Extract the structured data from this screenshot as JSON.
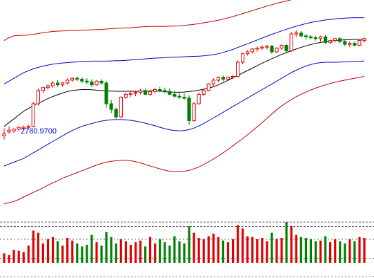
{
  "chart_data": {
    "type": "line",
    "title": "",
    "colors": {
      "up": "#e00000",
      "down": "#008000",
      "mid_band": "#000000",
      "inner_band": "#0000c0",
      "outer_band": "#c00000",
      "price_label": "#0000cc",
      "volume_ref": "#000000"
    },
    "price_label": "2780.9700",
    "price_range": [
      2400,
      3500
    ],
    "volume_range": [
      0,
      100
    ],
    "n_bars": 75,
    "mid_band": [
      2830,
      2850,
      2870,
      2890,
      2910,
      2925,
      2940,
      2953,
      2965,
      2977,
      2988,
      2998,
      3007,
      3015,
      3020,
      3023,
      3025,
      3025,
      3024,
      3022,
      3020,
      3018,
      3017,
      3016,
      3016,
      3016,
      3016,
      3016,
      3016,
      3017,
      3018,
      3018,
      3017,
      3014,
      3012,
      3011,
      3011,
      3012,
      3015,
      3018,
      3022,
      3027,
      3033,
      3040,
      3050,
      3062,
      3074,
      3087,
      3100,
      3113,
      3126,
      3139,
      3152,
      3165,
      3177,
      3189,
      3200,
      3211,
      3221,
      3231,
      3240,
      3249,
      3257,
      3264,
      3270,
      3275,
      3279,
      3282,
      3285,
      3287,
      3289,
      3290,
      3291,
      3292,
      3292
    ],
    "inner_upper": [
      3055,
      3070,
      3085,
      3100,
      3115,
      3125,
      3135,
      3143,
      3150,
      3155,
      3160,
      3163,
      3166,
      3168,
      3170,
      3172,
      3174,
      3175,
      3176,
      3176,
      3176,
      3176,
      3177,
      3178,
      3178,
      3180,
      3182,
      3184,
      3186,
      3188,
      3190,
      3192,
      3193,
      3194,
      3196,
      3197,
      3198,
      3199,
      3200,
      3201,
      3202,
      3204,
      3207,
      3210,
      3215,
      3222,
      3230,
      3238,
      3248,
      3258,
      3268,
      3278,
      3288,
      3298,
      3308,
      3318,
      3327,
      3336,
      3345,
      3353,
      3361,
      3368,
      3375,
      3381,
      3386,
      3390,
      3394,
      3397,
      3400,
      3402,
      3404,
      3405,
      3406,
      3406,
      3406
    ],
    "inner_lower": [
      2620,
      2630,
      2640,
      2650,
      2660,
      2675,
      2690,
      2705,
      2720,
      2735,
      2750,
      2765,
      2780,
      2795,
      2808,
      2820,
      2830,
      2838,
      2845,
      2852,
      2858,
      2862,
      2865,
      2866,
      2866,
      2865,
      2862,
      2858,
      2853,
      2847,
      2840,
      2833,
      2825,
      2818,
      2812,
      2808,
      2806,
      2808,
      2813,
      2821,
      2832,
      2845,
      2860,
      2875,
      2890,
      2905,
      2920,
      2935,
      2950,
      2965,
      2980,
      2995,
      3010,
      3025,
      3040,
      3055,
      3070,
      3085,
      3100,
      3115,
      3128,
      3140,
      3150,
      3158,
      3164,
      3168,
      3170,
      3170,
      3170,
      3171,
      3172,
      3173,
      3174,
      3175,
      3177
    ],
    "outer_upper": [
      3285,
      3300,
      3310,
      3312,
      3313,
      3315,
      3318,
      3322,
      3327,
      3330,
      3333,
      3335,
      3336,
      3337,
      3338,
      3339,
      3340,
      3341,
      3342,
      3343,
      3344,
      3346,
      3348,
      3350,
      3351,
      3352,
      3353,
      3355,
      3357,
      3359,
      3360,
      3360,
      3360,
      3360,
      3361,
      3362,
      3363,
      3365,
      3368,
      3371,
      3375,
      3379,
      3383,
      3388,
      3393,
      3398,
      3405,
      3412,
      3420,
      3428,
      3436,
      3444,
      3452,
      3460,
      3468,
      3475,
      3482,
      3489,
      3495,
      3501,
      3507,
      3513,
      3518,
      3522,
      3525,
      3527,
      3528,
      3528,
      3527,
      3526,
      3525,
      3525,
      3524,
      3524,
      3524
    ],
    "outer_lower": [
      2420,
      2425,
      2432,
      2442,
      2455,
      2468,
      2480,
      2492,
      2505,
      2518,
      2530,
      2542,
      2555,
      2565,
      2575,
      2585,
      2595,
      2605,
      2615,
      2625,
      2633,
      2640,
      2645,
      2648,
      2650,
      2650,
      2648,
      2643,
      2636,
      2628,
      2620,
      2612,
      2605,
      2598,
      2592,
      2590,
      2590,
      2592,
      2597,
      2605,
      2615,
      2628,
      2642,
      2657,
      2673,
      2690,
      2708,
      2727,
      2746,
      2765,
      2785,
      2806,
      2828,
      2850,
      2873,
      2896,
      2918,
      2938,
      2956,
      2972,
      2987,
      3000,
      3012,
      3023,
      3033,
      3042,
      3050,
      3057,
      3064,
      3070,
      3075,
      3080,
      3085,
      3090,
      3095
    ],
    "candles_ohlc": [
      [
        2780,
        2820,
        2760,
        2790
      ],
      [
        2800,
        2830,
        2790,
        2810
      ],
      [
        2805,
        2820,
        2795,
        2815
      ],
      [
        2815,
        2830,
        2805,
        2825
      ],
      [
        2820,
        2835,
        2810,
        2825
      ],
      [
        2825,
        2840,
        2815,
        2830
      ],
      [
        2830,
        2960,
        2825,
        2950
      ],
      [
        2950,
        3030,
        2940,
        3020
      ],
      [
        3020,
        3040,
        3005,
        3035
      ],
      [
        3035,
        3055,
        3025,
        3045
      ],
      [
        3045,
        3070,
        3035,
        3060
      ],
      [
        3060,
        3075,
        3040,
        3050
      ],
      [
        3050,
        3065,
        3040,
        3060
      ],
      [
        3060,
        3085,
        3050,
        3075
      ],
      [
        3075,
        3090,
        3065,
        3085
      ],
      [
        3085,
        3095,
        3070,
        3080
      ],
      [
        3080,
        3090,
        3060,
        3070
      ],
      [
        3070,
        3085,
        3055,
        3065
      ],
      [
        3065,
        3080,
        3040,
        3050
      ],
      [
        3050,
        3075,
        3045,
        3070
      ],
      [
        3070,
        3080,
        3050,
        3060
      ],
      [
        3060,
        3070,
        2930,
        2950
      ],
      [
        2950,
        2970,
        2900,
        2920
      ],
      [
        2920,
        2930,
        2870,
        2880
      ],
      [
        2880,
        2990,
        2875,
        2985
      ],
      [
        2985,
        3010,
        2975,
        3000
      ],
      [
        3000,
        3020,
        2985,
        3005
      ],
      [
        3005,
        3020,
        2990,
        3010
      ],
      [
        3010,
        3030,
        3000,
        3020
      ],
      [
        3020,
        3030,
        2995,
        3000
      ],
      [
        3000,
        3025,
        2990,
        3015
      ],
      [
        3015,
        3035,
        3005,
        3025
      ],
      [
        3025,
        3040,
        3010,
        3020
      ],
      [
        3020,
        3035,
        3005,
        3015
      ],
      [
        3015,
        3030,
        2995,
        3000
      ],
      [
        3000,
        3020,
        2980,
        2990
      ],
      [
        2990,
        3010,
        2975,
        2985
      ],
      [
        2985,
        3005,
        2970,
        2980
      ],
      [
        2980,
        2995,
        2840,
        2860
      ],
      [
        2860,
        2960,
        2855,
        2950
      ],
      [
        2950,
        3010,
        2945,
        3000
      ],
      [
        3000,
        3030,
        2990,
        3020
      ],
      [
        3020,
        3060,
        3015,
        3055
      ],
      [
        3055,
        3085,
        3045,
        3075
      ],
      [
        3075,
        3095,
        3065,
        3090
      ],
      [
        3090,
        3100,
        3070,
        3080
      ],
      [
        3080,
        3095,
        3070,
        3090
      ],
      [
        3090,
        3105,
        3080,
        3095
      ],
      [
        3095,
        3180,
        3090,
        3170
      ],
      [
        3170,
        3220,
        3160,
        3215
      ],
      [
        3215,
        3235,
        3205,
        3225
      ],
      [
        3225,
        3245,
        3215,
        3240
      ],
      [
        3240,
        3255,
        3225,
        3245
      ],
      [
        3245,
        3260,
        3235,
        3250
      ],
      [
        3250,
        3262,
        3238,
        3255
      ],
      [
        3255,
        3262,
        3215,
        3225
      ],
      [
        3225,
        3250,
        3220,
        3245
      ],
      [
        3245,
        3265,
        3235,
        3260
      ],
      [
        3260,
        3265,
        3220,
        3230
      ],
      [
        3230,
        3330,
        3225,
        3320
      ],
      [
        3320,
        3340,
        3305,
        3325
      ],
      [
        3325,
        3335,
        3300,
        3310
      ],
      [
        3310,
        3320,
        3290,
        3305
      ],
      [
        3305,
        3315,
        3290,
        3300
      ],
      [
        3300,
        3310,
        3285,
        3295
      ],
      [
        3295,
        3310,
        3280,
        3305
      ],
      [
        3305,
        3315,
        3265,
        3275
      ],
      [
        3275,
        3290,
        3265,
        3285
      ],
      [
        3285,
        3300,
        3275,
        3295
      ],
      [
        3295,
        3305,
        3270,
        3280
      ],
      [
        3280,
        3290,
        3255,
        3265
      ],
      [
        3265,
        3280,
        3250,
        3270
      ],
      [
        3270,
        3280,
        3255,
        3260
      ],
      [
        3260,
        3290,
        3255,
        3285
      ],
      [
        3285,
        3300,
        3275,
        3295
      ]
    ],
    "volume": [
      22,
      18,
      30,
      28,
      25,
      40,
      75,
      70,
      45,
      55,
      60,
      50,
      40,
      58,
      52,
      45,
      38,
      42,
      65,
      48,
      40,
      72,
      60,
      45,
      55,
      50,
      42,
      48,
      52,
      38,
      60,
      45,
      55,
      48,
      40,
      62,
      50,
      45,
      85,
      70,
      58,
      55,
      62,
      68,
      60,
      52,
      48,
      55,
      88,
      80,
      62,
      60,
      55,
      58,
      50,
      70,
      56,
      58,
      95,
      85,
      65,
      60,
      58,
      55,
      50,
      52,
      62,
      48,
      55,
      50,
      45,
      55,
      50,
      60,
      58
    ]
  }
}
